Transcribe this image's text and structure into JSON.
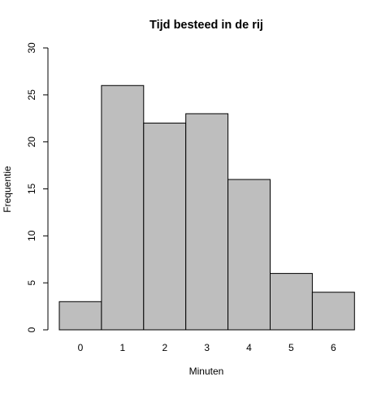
{
  "chart_data": {
    "type": "bar",
    "title": "Tijd besteed in de rij",
    "xlabel": "Minuten",
    "ylabel": "Frequentie",
    "categories": [
      "0",
      "1",
      "2",
      "3",
      "4",
      "5",
      "6"
    ],
    "values": [
      3,
      26,
      22,
      23,
      16,
      6,
      4
    ],
    "ylim": [
      0,
      30
    ],
    "yticks": [
      "0",
      "5",
      "10",
      "15",
      "20",
      "25",
      "30"
    ],
    "grid": false,
    "bar_color": "#bebebe",
    "edge_color": "#000000"
  }
}
